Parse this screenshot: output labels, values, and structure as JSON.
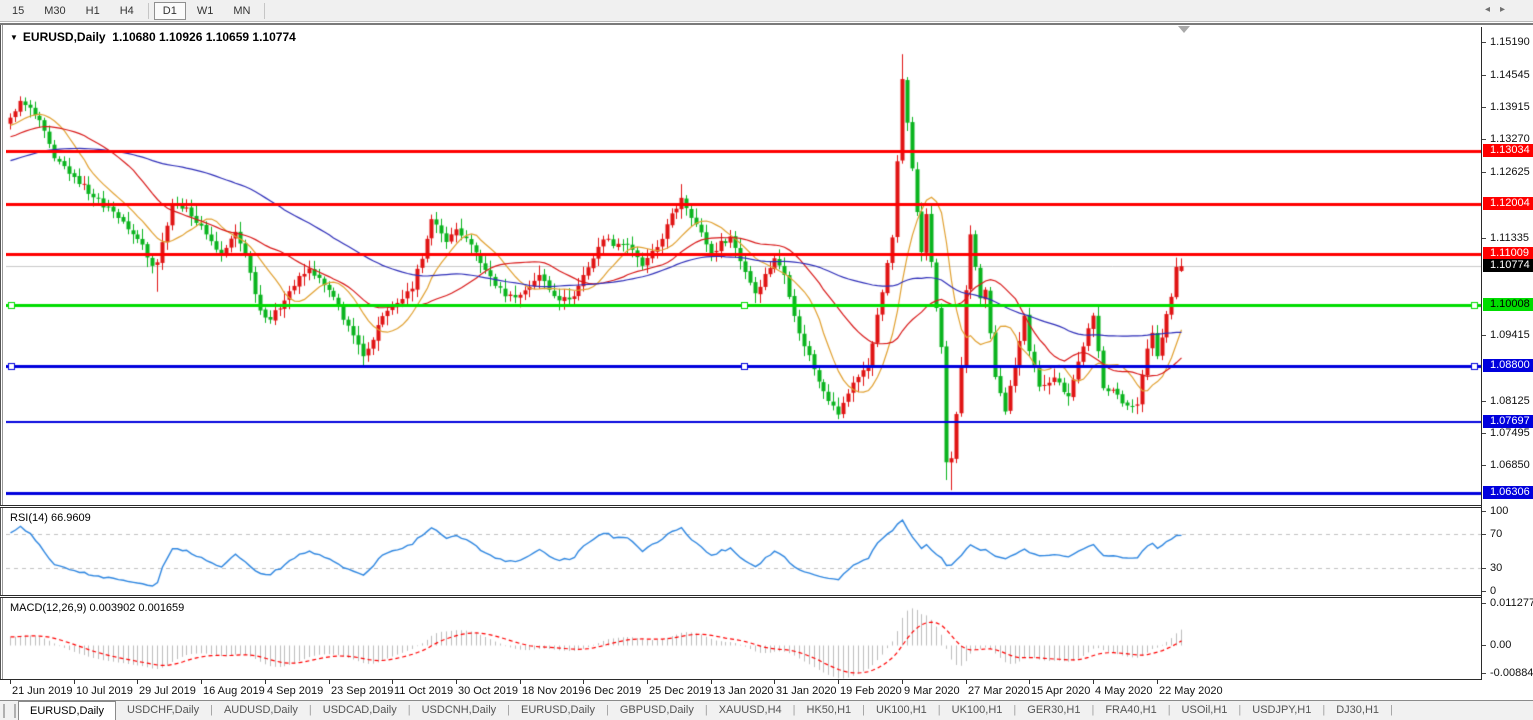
{
  "toolbar": {
    "timeframes": [
      {
        "label": "15",
        "active": false,
        "sep_after": false
      },
      {
        "label": "M30",
        "active": false,
        "sep_after": false
      },
      {
        "label": "H1",
        "active": false,
        "sep_after": false
      },
      {
        "label": "H4",
        "active": false,
        "sep_after": true
      },
      {
        "label": "D1",
        "active": true,
        "sep_after": false
      },
      {
        "label": "W1",
        "active": false,
        "sep_after": false
      },
      {
        "label": "MN",
        "active": false,
        "sep_after": true
      }
    ]
  },
  "chart_title": {
    "dropdown_icon": "▼",
    "symbol": "EURUSD,Daily",
    "ohlc": "1.10680 1.10926 1.10659 1.10774"
  },
  "chart_data": {
    "type": "candlestick",
    "symbol": "EURUSD",
    "timeframe": "Daily",
    "current": {
      "open": 1.1068,
      "high": 1.10926,
      "low": 1.10659,
      "close": 1.10774
    },
    "ylim": [
      1.059,
      1.156
    ],
    "candle_up_color": "#e01414",
    "candle_down_color": "#0ab41e",
    "current_price_line": {
      "price": 1.10774,
      "color": "#c8c8c8"
    },
    "x_ticks": [
      "21 Jun 2019",
      "10 Jul 2019",
      "29 Jul 2019",
      "16 Aug 2019",
      "4 Sep 2019",
      "23 Sep 2019",
      "11 Oct 2019",
      "30 Oct 2019",
      "18 Nov 2019",
      "6 Dec 2019",
      "25 Dec 2019",
      "13 Jan 2020",
      "31 Jan 2020",
      "19 Feb 2020",
      "9 Mar 2020",
      "27 Mar 2020",
      "15 Apr 2020",
      "4 May 2020",
      "22 May 2020"
    ],
    "candles_per_tick": 13,
    "close_waypoints": [
      [
        0,
        1.137
      ],
      [
        2,
        1.1403
      ],
      [
        6,
        1.1365
      ],
      [
        9,
        1.129
      ],
      [
        13,
        1.1253
      ],
      [
        17,
        1.1213
      ],
      [
        21,
        1.1185
      ],
      [
        24,
        1.115
      ],
      [
        27,
        1.112
      ],
      [
        29,
        1.1078
      ],
      [
        30,
        1.1085
      ],
      [
        33,
        1.12
      ],
      [
        36,
        1.1193
      ],
      [
        40,
        1.114
      ],
      [
        43,
        1.1098
      ],
      [
        46,
        1.1145
      ],
      [
        48,
        1.11
      ],
      [
        51,
        1.099
      ],
      [
        53,
        1.0972
      ],
      [
        57,
        1.1028
      ],
      [
        61,
        1.1073
      ],
      [
        64,
        1.104
      ],
      [
        66,
        1.1017
      ],
      [
        70,
        1.0941
      ],
      [
        72,
        1.09
      ],
      [
        76,
        1.0979
      ],
      [
        79,
        1.1005
      ],
      [
        82,
        1.1033
      ],
      [
        86,
        1.117
      ],
      [
        89,
        1.1125
      ],
      [
        91,
        1.115
      ],
      [
        94,
        1.112
      ],
      [
        97,
        1.107
      ],
      [
        101,
        1.1018
      ],
      [
        104,
        1.1021
      ],
      [
        108,
        1.106
      ],
      [
        112,
        1.101
      ],
      [
        115,
        1.1018
      ],
      [
        117,
        1.106
      ],
      [
        121,
        1.113
      ],
      [
        126,
        1.112
      ],
      [
        129,
        1.1078
      ],
      [
        132,
        1.1115
      ],
      [
        137,
        1.1212
      ],
      [
        140,
        1.116
      ],
      [
        143,
        1.1103
      ],
      [
        147,
        1.1136
      ],
      [
        152,
        1.1024
      ],
      [
        156,
        1.1093
      ],
      [
        158,
        1.106
      ],
      [
        161,
        1.0945
      ],
      [
        166,
        1.0831
      ],
      [
        169,
        1.0785
      ],
      [
        172,
        1.0848
      ],
      [
        175,
        1.0881
      ],
      [
        178,
        1.1026
      ],
      [
        180,
        1.1134
      ],
      [
        181,
        1.1284
      ],
      [
        182,
        1.1446
      ],
      [
        184,
        1.127
      ],
      [
        185,
        1.1184
      ],
      [
        186,
        1.1105
      ],
      [
        187,
        1.118
      ],
      [
        189,
        1.0995
      ],
      [
        190,
        1.0918
      ],
      [
        191,
        1.0691
      ],
      [
        192,
        1.0699
      ],
      [
        193,
        1.0786
      ],
      [
        194,
        1.088
      ],
      [
        195,
        1.103
      ],
      [
        196,
        1.114
      ],
      [
        198,
        1.1014
      ],
      [
        199,
        1.1031
      ],
      [
        201,
        1.0859
      ],
      [
        203,
        1.0791
      ],
      [
        206,
        1.093
      ],
      [
        207,
        1.098
      ],
      [
        208,
        1.091
      ],
      [
        210,
        1.084
      ],
      [
        213,
        1.0858
      ],
      [
        216,
        1.0821
      ],
      [
        220,
        1.0955
      ],
      [
        221,
        1.098
      ],
      [
        223,
        1.0837
      ],
      [
        225,
        1.0834
      ],
      [
        227,
        1.0807
      ],
      [
        230,
        1.0805
      ],
      [
        232,
        1.0915
      ],
      [
        233,
        1.0946
      ],
      [
        234,
        1.09
      ],
      [
        236,
        1.0983
      ],
      [
        237,
        1.1017
      ],
      [
        238,
        1.1076
      ],
      [
        239,
        1.10774
      ]
    ],
    "wick_overrides": {
      "2": {
        "high": 1.1412
      },
      "30": {
        "low": 1.1027
      },
      "72": {
        "low": 1.0879
      },
      "86": {
        "high": 1.1179
      },
      "137": {
        "high": 1.1239
      },
      "170": {
        "low": 1.0778
      },
      "182": {
        "high": 1.1495
      },
      "191": {
        "low": 1.0656
      },
      "192": {
        "low": 1.0636
      },
      "239": {
        "high": 1.10926,
        "low": 1.10659
      }
    },
    "moving_averages": [
      {
        "period": 10,
        "color": "#e0a030"
      },
      {
        "period": 25,
        "color": "#d81818"
      },
      {
        "period": 60,
        "color": "#2d2db8"
      }
    ],
    "hlines": [
      {
        "price": 1.13034,
        "color": "#ff0000",
        "width": 3,
        "selected": false
      },
      {
        "price": 1.12004,
        "color": "#ff0000",
        "width": 3,
        "selected": false
      },
      {
        "price": 1.11009,
        "color": "#ff0000",
        "width": 3,
        "selected": false
      },
      {
        "price": 1.10008,
        "color": "#00dd00",
        "width": 3,
        "selected": true
      },
      {
        "price": 1.088,
        "color": "#0000dd",
        "width": 3,
        "selected": true
      },
      {
        "price": 1.07697,
        "color": "#0000dd",
        "width": 2,
        "selected": false
      },
      {
        "price": 1.06306,
        "color": "#0000dd",
        "width": 3,
        "selected": false
      }
    ],
    "price_axis": {
      "plain_ticks": [
        "1.15190",
        "1.14545",
        "1.13915",
        "1.13270",
        "1.12625",
        "1.11335",
        "1.09415",
        "1.08125",
        "1.07495",
        "1.06850"
      ],
      "badges": [
        {
          "label": "1.13034",
          "bg": "#ff0000",
          "fg": "#ffffff"
        },
        {
          "label": "1.12004",
          "bg": "#ff0000",
          "fg": "#ffffff"
        },
        {
          "label": "1.11009",
          "bg": "#ff0000",
          "fg": "#ffffff"
        },
        {
          "label": "1.10774",
          "bg": "#000000",
          "fg": "#ffffff"
        },
        {
          "label": "1.10008",
          "bg": "#00dd00",
          "fg": "#000000"
        },
        {
          "label": "1.08800",
          "bg": "#0000dd",
          "fg": "#ffffff"
        },
        {
          "label": "1.07697",
          "bg": "#0000dd",
          "fg": "#ffffff"
        },
        {
          "label": "1.06306",
          "bg": "#0000dd",
          "fg": "#ffffff"
        }
      ]
    },
    "rsi": {
      "label": "RSI(14) 66.9609",
      "period": 14,
      "current": 66.9609,
      "line_color": "#2e86e0",
      "guide_color": "#c0c0c0",
      "guides": [
        70,
        30
      ],
      "levels": [
        {
          "value": 100,
          "label": "100"
        },
        {
          "value": 70,
          "label": "70"
        },
        {
          "value": 30,
          "label": "30"
        },
        {
          "value": 0,
          "label": "0"
        }
      ]
    },
    "macd": {
      "label": "MACD(12,26,9) 0.003902 0.001659",
      "fast": 12,
      "slow": 26,
      "signal": 9,
      "macd_value": 0.003902,
      "signal_value": 0.001659,
      "hist_color": "#bdbdbd",
      "signal_color": "#ff0000",
      "axis_labels": [
        {
          "value": 0.011277,
          "label": "0.011277"
        },
        {
          "value": 0,
          "label": "0.00"
        },
        {
          "value": -0.008845,
          "label": "-0.008845"
        }
      ]
    }
  },
  "tabs": {
    "scroll_left_icon": "◂",
    "scroll_right_icon": "▸",
    "items": [
      {
        "label": "EURUSD,Daily",
        "active": true
      },
      {
        "label": "USDCHF,Daily",
        "active": false
      },
      {
        "label": "AUDUSD,Daily",
        "active": false
      },
      {
        "label": "USDCAD,Daily",
        "active": false
      },
      {
        "label": "USDCNH,Daily",
        "active": false
      },
      {
        "label": "EURUSD,Daily",
        "active": false
      },
      {
        "label": "GBPUSD,Daily",
        "active": false
      },
      {
        "label": "XAUUSD,H4",
        "active": false
      },
      {
        "label": "HK50,H1",
        "active": false
      },
      {
        "label": "UK100,H1",
        "active": false
      },
      {
        "label": "UK100,H1",
        "active": false
      },
      {
        "label": "GER30,H1",
        "active": false
      },
      {
        "label": "FRA40,H1",
        "active": false
      },
      {
        "label": "USOil,H1",
        "active": false
      },
      {
        "label": "USDJPY,H1",
        "active": false
      },
      {
        "label": "DJ30,H1",
        "active": false
      }
    ]
  }
}
